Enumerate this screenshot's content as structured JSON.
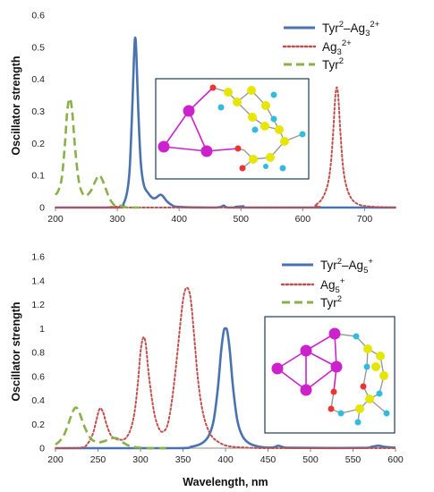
{
  "colors": {
    "complex": "#4a72b0",
    "silver": "#c0504d",
    "tyr": "#8ab04a",
    "axis": "#888888",
    "inset_border": "#1f3b5a",
    "ag_atom": "#cc22cc",
    "c_atom": "#e6e600",
    "h_atom": "#33bbdd",
    "o_atom": "#ee3333"
  },
  "chart_data": [
    {
      "type": "line",
      "id": "top",
      "ylabel": "Oscillator strength",
      "xlabel": "",
      "xlim": [
        200,
        750
      ],
      "ylim": [
        0,
        0.6
      ],
      "xticks": [
        200,
        300,
        400,
        500,
        600,
        700
      ],
      "yticks": [
        0,
        0.1,
        0.2,
        0.3,
        0.4,
        0.5,
        0.6
      ],
      "grid": false,
      "legend_position": "top-right",
      "series": [
        {
          "key": "complex",
          "legend": {
            "main": "Tyr",
            "sup1": "2",
            "mid": "–Ag",
            "sub": "3",
            "sup2": "2+"
          },
          "style": "solid",
          "color": "complex",
          "points": [
            [
              200,
              0.0
            ],
            [
              300,
              0.0
            ],
            [
              310,
              0.012
            ],
            [
              316,
              0.05
            ],
            [
              320,
              0.12
            ],
            [
              324,
              0.3
            ],
            [
              327,
              0.47
            ],
            [
              329,
              0.53
            ],
            [
              331,
              0.47
            ],
            [
              334,
              0.3
            ],
            [
              338,
              0.14
            ],
            [
              343,
              0.07
            ],
            [
              350,
              0.045
            ],
            [
              357,
              0.03
            ],
            [
              362,
              0.03
            ],
            [
              366,
              0.036
            ],
            [
              370,
              0.04
            ],
            [
              374,
              0.035
            ],
            [
              380,
              0.02
            ],
            [
              388,
              0.008
            ],
            [
              400,
              0.002
            ],
            [
              460,
              0.0
            ],
            [
              472,
              0.006
            ],
            [
              478,
              0.0
            ],
            [
              500,
              0.0
            ],
            [
              504,
              0.004
            ],
            [
              510,
              0.0
            ],
            [
              750,
              0.0
            ]
          ]
        },
        {
          "key": "silver",
          "legend": {
            "main": "Ag",
            "sub": "3",
            "sup2": "2+"
          },
          "style": "dotted",
          "color": "silver",
          "points": [
            [
              200,
              0.0
            ],
            [
              300,
              0.0
            ],
            [
              304,
              0.003
            ],
            [
              308,
              0.0
            ],
            [
              600,
              0.0
            ],
            [
              620,
              0.008
            ],
            [
              632,
              0.03
            ],
            [
              640,
              0.07
            ],
            [
              645,
              0.13
            ],
            [
              649,
              0.23
            ],
            [
              652,
              0.33
            ],
            [
              654,
              0.37
            ],
            [
              656,
              0.37
            ],
            [
              658,
              0.33
            ],
            [
              661,
              0.23
            ],
            [
              665,
              0.13
            ],
            [
              670,
              0.07
            ],
            [
              678,
              0.03
            ],
            [
              690,
              0.01
            ],
            [
              710,
              0.003
            ],
            [
              750,
              0.0
            ]
          ]
        },
        {
          "key": "tyr",
          "legend": {
            "main": "Tyr",
            "sup1": "2"
          },
          "style": "dashed",
          "color": "tyr",
          "points": [
            [
              200,
              0.04
            ],
            [
              204,
              0.05
            ],
            [
              210,
              0.09
            ],
            [
              215,
              0.19
            ],
            [
              219,
              0.3
            ],
            [
              223,
              0.34
            ],
            [
              227,
              0.3
            ],
            [
              232,
              0.18
            ],
            [
              238,
              0.08
            ],
            [
              245,
              0.04
            ],
            [
              252,
              0.04
            ],
            [
              258,
              0.055
            ],
            [
              264,
              0.08
            ],
            [
              270,
              0.1
            ],
            [
              275,
              0.09
            ],
            [
              281,
              0.06
            ],
            [
              287,
              0.03
            ],
            [
              293,
              0.012
            ],
            [
              298,
              0.005
            ],
            [
              305,
              0.006
            ],
            [
              310,
              0.002
            ],
            [
              320,
              0.0
            ],
            [
              340,
              0.0
            ]
          ]
        }
      ]
    },
    {
      "type": "line",
      "id": "bottom",
      "ylabel": "Oscillator strength",
      "xlabel": "Wavelength, nm",
      "xlim": [
        200,
        600
      ],
      "ylim": [
        0,
        1.6
      ],
      "xticks": [
        200,
        250,
        300,
        350,
        400,
        450,
        500,
        550,
        600
      ],
      "yticks": [
        0,
        0.2,
        0.4,
        0.6,
        0.8,
        1,
        1.2,
        1.4,
        1.6
      ],
      "grid": false,
      "legend_position": "top-right",
      "series": [
        {
          "key": "complex",
          "legend": {
            "main": "Tyr",
            "sup1": "2",
            "mid": "–Ag",
            "sub": "5",
            "sup2": "+"
          },
          "style": "solid",
          "color": "complex",
          "points": [
            [
              200,
              0.0
            ],
            [
              340,
              0.0
            ],
            [
              360,
              0.012
            ],
            [
              372,
              0.04
            ],
            [
              380,
              0.1
            ],
            [
              386,
              0.23
            ],
            [
              391,
              0.5
            ],
            [
              395,
              0.82
            ],
            [
              398,
              0.98
            ],
            [
              400,
              1.0
            ],
            [
              402,
              0.98
            ],
            [
              405,
              0.82
            ],
            [
              409,
              0.5
            ],
            [
              414,
              0.23
            ],
            [
              420,
              0.1
            ],
            [
              428,
              0.04
            ],
            [
              440,
              0.012
            ],
            [
              455,
              0.005
            ],
            [
              462,
              0.02
            ],
            [
              468,
              0.008
            ],
            [
              480,
              0.003
            ],
            [
              560,
              0.002
            ],
            [
              572,
              0.012
            ],
            [
              580,
              0.02
            ],
            [
              588,
              0.01
            ],
            [
              600,
              0.004
            ]
          ]
        },
        {
          "key": "silver",
          "legend": {
            "main": "Ag",
            "sub": "5",
            "sup2": "+"
          },
          "style": "dotted",
          "color": "silver",
          "points": [
            [
              200,
              0.0
            ],
            [
              230,
              0.004
            ],
            [
              238,
              0.04
            ],
            [
              244,
              0.12
            ],
            [
              248,
              0.23
            ],
            [
              252,
              0.33
            ],
            [
              256,
              0.3
            ],
            [
              260,
              0.2
            ],
            [
              265,
              0.11
            ],
            [
              270,
              0.08
            ],
            [
              276,
              0.07
            ],
            [
              282,
              0.08
            ],
            [
              288,
              0.15
            ],
            [
              293,
              0.3
            ],
            [
              297,
              0.55
            ],
            [
              300,
              0.8
            ],
            [
              303,
              0.92
            ],
            [
              306,
              0.88
            ],
            [
              310,
              0.6
            ],
            [
              316,
              0.3
            ],
            [
              322,
              0.16
            ],
            [
              327,
              0.14
            ],
            [
              332,
              0.2
            ],
            [
              337,
              0.4
            ],
            [
              342,
              0.7
            ],
            [
              347,
              1.05
            ],
            [
              351,
              1.28
            ],
            [
              355,
              1.34
            ],
            [
              359,
              1.25
            ],
            [
              363,
              0.95
            ],
            [
              368,
              0.55
            ],
            [
              374,
              0.28
            ],
            [
              382,
              0.12
            ],
            [
              392,
              0.05
            ],
            [
              405,
              0.015
            ],
            [
              430,
              0.003
            ],
            [
              460,
              0.0
            ],
            [
              600,
              0.0
            ]
          ]
        },
        {
          "key": "tyr",
          "legend": {
            "main": "Tyr",
            "sup1": "2"
          },
          "style": "dashed",
          "color": "tyr",
          "points": [
            [
              200,
              0.03
            ],
            [
              205,
              0.06
            ],
            [
              210,
              0.11
            ],
            [
              215,
              0.2
            ],
            [
              220,
              0.3
            ],
            [
              224,
              0.34
            ],
            [
              228,
              0.3
            ],
            [
              233,
              0.2
            ],
            [
              238,
              0.12
            ],
            [
              243,
              0.07
            ],
            [
              250,
              0.05
            ],
            [
              256,
              0.055
            ],
            [
              262,
              0.07
            ],
            [
              268,
              0.085
            ],
            [
              273,
              0.08
            ],
            [
              279,
              0.05
            ],
            [
              285,
              0.025
            ],
            [
              292,
              0.01
            ],
            [
              300,
              0.004
            ],
            [
              312,
              0.0
            ],
            [
              330,
              0.0
            ]
          ]
        }
      ]
    }
  ]
}
